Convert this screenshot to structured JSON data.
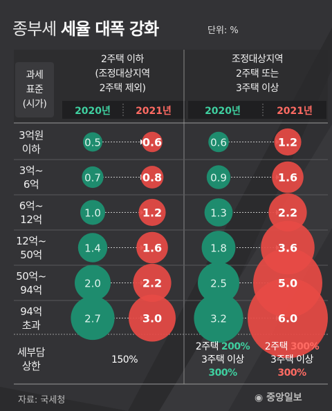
{
  "header": {
    "title_thin": "종부세",
    "title_bold": "세율 대폭 강화",
    "unit": "단위: %"
  },
  "chart_data": {
    "type": "bubble",
    "title": "종부세 세율 대폭 강화",
    "unit": "%",
    "years": [
      "2020년",
      "2021년"
    ],
    "categories": [
      [
        "3억원",
        "이하"
      ],
      [
        "3억~",
        "6억"
      ],
      [
        "6억~",
        "12억"
      ],
      [
        "12억~",
        "50억"
      ],
      [
        "50억~",
        "94억"
      ],
      [
        "94억",
        "초과"
      ]
    ],
    "groups": [
      {
        "header": [
          "2주택 이하",
          "(조정대상지역",
          "2주택 제외)"
        ],
        "series": [
          {
            "name": "2020년",
            "values": [
              0.5,
              0.7,
              1.0,
              1.4,
              2.0,
              2.7
            ]
          },
          {
            "name": "2021년",
            "values": [
              0.6,
              0.8,
              1.2,
              1.6,
              2.2,
              3.0
            ]
          }
        ]
      },
      {
        "header": [
          "조정대상지역",
          "2주택 또는",
          "3주택 이상"
        ],
        "series": [
          {
            "name": "2020년",
            "values": [
              0.6,
              0.9,
              1.3,
              1.8,
              2.5,
              3.2
            ]
          },
          {
            "name": "2021년",
            "values": [
              1.2,
              1.6,
              2.2,
              3.6,
              5.0,
              6.0
            ]
          }
        ]
      }
    ],
    "colors": {
      "y2020": "#1e8c6e",
      "y2021": "#e64a45"
    }
  },
  "table": {
    "stub_header": [
      "과세",
      "표준",
      "(시가)"
    ],
    "cap_label": [
      "세부담",
      "상한"
    ],
    "cap_left": "150%",
    "cap_2020": [
      "2주택",
      "200%",
      "3주택 이상",
      "300%"
    ],
    "cap_2021": [
      "2주택",
      "300%",
      "3주택 이상",
      "300%"
    ]
  },
  "footer": {
    "source": "자료: 국세청",
    "logo": "중앙일보"
  }
}
